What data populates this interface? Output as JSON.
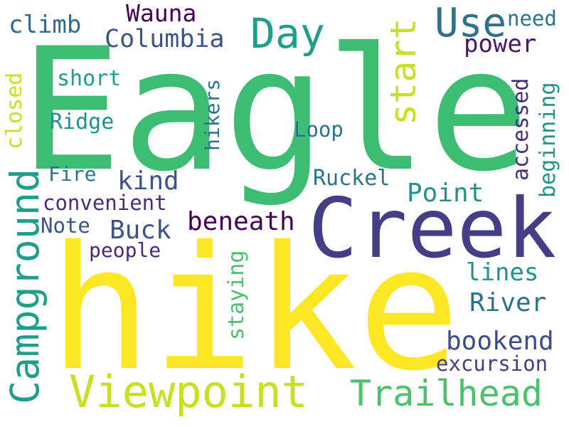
{
  "words": [
    {
      "id": "eagle",
      "text": "Eagle",
      "color": "#3dbc74"
    },
    {
      "id": "hike",
      "text": "hike",
      "color": "#fde725"
    },
    {
      "id": "creek",
      "text": "Creek",
      "color": "#433e85"
    },
    {
      "id": "viewpoint",
      "text": "Viewpoint",
      "color": "#c8e020"
    },
    {
      "id": "trailhead",
      "text": "Trailhead",
      "color": "#4ac16d"
    },
    {
      "id": "campground",
      "text": "Campground",
      "color": "#1f9e89"
    },
    {
      "id": "day",
      "text": "Day",
      "color": "#1f9e89"
    },
    {
      "id": "use",
      "text": "Use",
      "color": "#2c728e"
    },
    {
      "id": "start",
      "text": "start",
      "color": "#c8e020"
    },
    {
      "id": "columbia",
      "text": "Columbia",
      "color": "#3b528b"
    },
    {
      "id": "wauna",
      "text": "Wauna",
      "color": "#440154"
    },
    {
      "id": "climb",
      "text": "climb",
      "color": "#31688e"
    },
    {
      "id": "need",
      "text": "need",
      "color": "#2c728e"
    },
    {
      "id": "power",
      "text": "power",
      "color": "#481769"
    },
    {
      "id": "short",
      "text": "short",
      "color": "#1f9e89"
    },
    {
      "id": "ridge",
      "text": "Ridge",
      "color": "#21918c"
    },
    {
      "id": "closed",
      "text": "closed",
      "color": "#c8e020"
    },
    {
      "id": "hikers",
      "text": "hikers",
      "color": "#2c728e"
    },
    {
      "id": "loop",
      "text": "Loop",
      "color": "#2c728e"
    },
    {
      "id": "accessed",
      "text": "accessed",
      "color": "#472d7b"
    },
    {
      "id": "beginning",
      "text": "beginning",
      "color": "#21918c"
    },
    {
      "id": "kind",
      "text": "kind",
      "color": "#3b528b"
    },
    {
      "id": "fire",
      "text": "Fire",
      "color": "#2c728e"
    },
    {
      "id": "ruckel",
      "text": "Ruckel",
      "color": "#2c728e"
    },
    {
      "id": "point",
      "text": "Point",
      "color": "#21918c"
    },
    {
      "id": "convenient",
      "text": "convenient",
      "color": "#472d7b"
    },
    {
      "id": "beneath",
      "text": "beneath",
      "color": "#440154"
    },
    {
      "id": "note",
      "text": "Note",
      "color": "#3b528b"
    },
    {
      "id": "buck",
      "text": "Buck",
      "color": "#3b528b"
    },
    {
      "id": "people",
      "text": "people",
      "color": "#482878"
    },
    {
      "id": "staying",
      "text": "staying",
      "color": "#4ac16d"
    },
    {
      "id": "lines",
      "text": "lines",
      "color": "#21918c"
    },
    {
      "id": "river",
      "text": "River",
      "color": "#2c728e"
    },
    {
      "id": "bookend",
      "text": "bookend",
      "color": "#3e4a89"
    },
    {
      "id": "excursion",
      "text": "excursion",
      "color": "#433e85"
    }
  ]
}
